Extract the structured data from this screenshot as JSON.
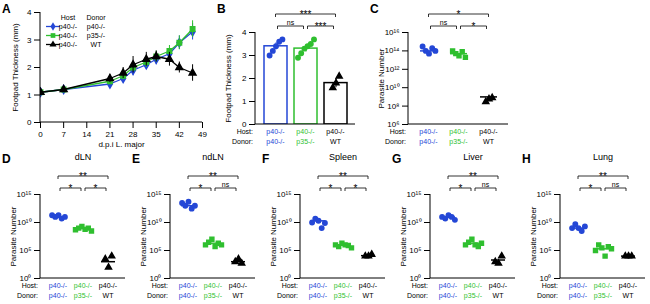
{
  "chart_data": [
    {
      "panel": "A",
      "type": "line",
      "x": [
        0,
        7,
        21,
        25,
        28,
        32,
        35,
        39,
        42,
        46
      ],
      "xlim": [
        0,
        49
      ],
      "xticks": [
        0,
        7,
        14,
        21,
        28,
        35,
        42,
        49
      ],
      "ylim": [
        0,
        4
      ],
      "yticks": [
        0,
        1,
        2,
        3,
        4
      ],
      "x_label": "d.p.i L. major",
      "y_label": "Footpad Thickness (mm)",
      "legend": "top-left",
      "legend_headers": [
        "Host",
        "Donor"
      ],
      "series": [
        {
          "host": "p40-/-",
          "donor": "p40-/-",
          "color": "#2447d6",
          "marker": "diamond",
          "values": [
            1.1,
            1.2,
            1.4,
            1.6,
            1.9,
            2.1,
            2.3,
            2.5,
            2.9,
            3.3
          ],
          "errors": [
            0.05,
            0.05,
            0.15,
            0.15,
            0.2,
            0.15,
            0.2,
            0.2,
            0.25,
            0.3
          ]
        },
        {
          "host": "p40-/-",
          "donor": "p35-/-",
          "color": "#2fbf2f",
          "marker": "square",
          "values": [
            1.1,
            1.2,
            1.5,
            1.7,
            2.0,
            2.2,
            2.4,
            2.6,
            2.9,
            3.4
          ],
          "errors": [
            0.05,
            0.05,
            0.1,
            0.15,
            0.15,
            0.2,
            0.2,
            0.2,
            0.25,
            0.3
          ]
        },
        {
          "host": "p40-/-",
          "donor": "WT",
          "color": "#000000",
          "marker": "triangle",
          "values": [
            1.1,
            1.2,
            1.6,
            1.8,
            2.1,
            2.3,
            2.4,
            2.3,
            2.0,
            1.8
          ],
          "errors": [
            0.05,
            0.05,
            0.15,
            0.2,
            0.3,
            0.25,
            0.2,
            0.25,
            0.2,
            0.3
          ]
        }
      ]
    },
    {
      "panel": "B",
      "type": "bar",
      "ylim": [
        0,
        4
      ],
      "yticks": [
        0,
        1,
        2,
        3,
        4
      ],
      "y_label": "Footpad Thickness (mm)",
      "row_labels": [
        "Host:",
        "Donor:"
      ],
      "series": [
        {
          "host": "p40-/-",
          "donor": "p40-/-",
          "color": "#2447d6",
          "marker": "circle",
          "value": 3.4,
          "error": 0.15,
          "points": [
            3.0,
            3.2,
            3.4,
            3.6,
            3.7
          ]
        },
        {
          "host": "p40-/-",
          "donor": "p35-/-",
          "color": "#2fbf2f",
          "marker": "circle",
          "value": 3.3,
          "error": 0.15,
          "points": [
            2.9,
            3.1,
            3.3,
            3.4,
            3.5,
            3.7
          ]
        },
        {
          "host": "p40-/-",
          "donor": "WT",
          "color": "#000000",
          "marker": "triangle",
          "value": 1.8,
          "error": 0.2,
          "points": [
            1.6,
            1.8,
            2.1
          ]
        }
      ],
      "significance": [
        {
          "pair": [
            0,
            1
          ],
          "label": "ns"
        },
        {
          "pair": [
            1,
            2
          ],
          "label": "***"
        },
        {
          "pair": [
            0,
            2
          ],
          "label": "***"
        }
      ]
    },
    {
      "panel": "C",
      "type": "scatter",
      "log": "y",
      "ylim": [
        1000000.0,
        1e+16
      ],
      "yticks": [
        {
          "value": 1000000.0,
          "label": "10⁶"
        },
        {
          "value": 100000000.0,
          "label": "10⁸"
        },
        {
          "value": 10000000000.0,
          "label": "10¹⁰"
        },
        {
          "value": 1000000000000.0,
          "label": "10¹²"
        },
        {
          "value": 100000000000000.0,
          "label": "10¹⁴"
        },
        {
          "value": 1e+16,
          "label": "10¹⁶"
        }
      ],
      "y_label": "Parasite Number",
      "row_labels": [
        "Host:",
        "Donor:"
      ],
      "series": [
        {
          "host": "p40-/-",
          "donor": "p40-/-",
          "color": "#2447d6",
          "marker": "circle",
          "mean": 100000000000000.0,
          "points": [
            300000000000000.0,
            100000000000000.0,
            50000000000000.0,
            200000000000000.0,
            100000000000000.0
          ]
        },
        {
          "host": "p40-/-",
          "donor": "p35-/-",
          "color": "#2fbf2f",
          "marker": "square",
          "mean": 50000000000000.0,
          "points": [
            100000000000000.0,
            50000000000000.0,
            30000000000000.0,
            80000000000000.0,
            20000000000000.0
          ]
        },
        {
          "host": "p40-/-",
          "donor": "WT",
          "color": "#000000",
          "marker": "triangle",
          "mean": 1000000000.0,
          "points": [
            300000000.0,
            600000000.0,
            800000000.0
          ]
        }
      ],
      "significance": [
        {
          "pair": [
            0,
            1
          ],
          "label": "ns"
        },
        {
          "pair": [
            1,
            2
          ],
          "label": "*"
        },
        {
          "pair": [
            0,
            2
          ],
          "label": "*"
        }
      ]
    },
    {
      "panel": "D",
      "type": "scatter",
      "log": "y",
      "title": "dLN",
      "ylim": [
        1,
        1000000000000000.0
      ],
      "yticks": [
        {
          "value": 1,
          "label": "10⁰"
        },
        {
          "value": 100000.0,
          "label": "10⁵"
        },
        {
          "value": 10000000000.0,
          "label": "10¹⁰"
        },
        {
          "value": 1000000000000000.0,
          "label": "10¹⁵"
        }
      ],
      "y_label": "Parasite Number",
      "row_labels": [
        "Host:",
        "Donor:"
      ],
      "series": [
        {
          "host": "p40-/-",
          "donor": "p40-/-",
          "color": "#2447d6",
          "marker": "circle",
          "mean": 100000000000.0,
          "points": [
            200000000000.0,
            100000000000.0,
            200000000000.0,
            50000000000.0,
            100000000000.0
          ]
        },
        {
          "host": "p40-/-",
          "donor": "p35-/-",
          "color": "#2fbf2f",
          "marker": "square",
          "mean": 800000000.0,
          "points": [
            500000000.0,
            1000000000.0,
            2000000000.0,
            600000000.0,
            1000000000.0,
            300000000.0
          ]
        },
        {
          "host": "p40-/-",
          "donor": "WT",
          "color": "#000000",
          "marker": "triangle",
          "mean": 1000.0,
          "points": [
            3000.0,
            100.0,
            10000.0
          ]
        }
      ],
      "significance": [
        {
          "pair": [
            0,
            1
          ],
          "label": "*"
        },
        {
          "pair": [
            1,
            2
          ],
          "label": "*"
        },
        {
          "pair": [
            0,
            2
          ],
          "label": "**"
        }
      ]
    },
    {
      "panel": "E",
      "type": "scatter",
      "log": "y",
      "title": "ndLN",
      "ylim": [
        1,
        1000000000000000.0
      ],
      "yticks": [
        {
          "value": 1,
          "label": "10⁰"
        },
        {
          "value": 100000.0,
          "label": "10⁵"
        },
        {
          "value": 10000000000.0,
          "label": "10¹⁰"
        },
        {
          "value": 1000000000000000.0,
          "label": "10¹⁵"
        }
      ],
      "y_label": "Parasite Number",
      "row_labels": [
        "Host:",
        "Donor:"
      ],
      "series": [
        {
          "host": "p40-/-",
          "donor": "p40-/-",
          "color": "#2447d6",
          "marker": "circle",
          "mean": 10000000000000.0,
          "points": [
            30000000000000.0,
            10000000000000.0,
            50000000000000.0,
            3000000000000.0,
            10000000000000.0
          ]
        },
        {
          "host": "p40-/-",
          "donor": "p35-/-",
          "color": "#2fbf2f",
          "marker": "square",
          "mean": 2000000.0,
          "points": [
            1000000.0,
            3000000.0,
            10000000.0,
            500000.0,
            2000000.0,
            1000000.0
          ]
        },
        {
          "host": "p40-/-",
          "donor": "WT",
          "color": "#000000",
          "marker": "triangle",
          "mean": 1000.0,
          "points": [
            1000.0,
            3000.0,
            500.0
          ]
        }
      ],
      "significance": [
        {
          "pair": [
            0,
            1
          ],
          "label": "*"
        },
        {
          "pair": [
            1,
            2
          ],
          "label": "ns"
        },
        {
          "pair": [
            0,
            2
          ],
          "label": "**"
        }
      ]
    },
    {
      "panel": "F",
      "type": "scatter",
      "log": "y",
      "title": "Spleen",
      "ylim": [
        1,
        1000000000000000.0
      ],
      "yticks": [
        {
          "value": 1,
          "label": "10⁰"
        },
        {
          "value": 100000.0,
          "label": "10⁵"
        },
        {
          "value": 10000000000.0,
          "label": "10¹⁰"
        },
        {
          "value": 1000000000000000.0,
          "label": "10¹⁵"
        }
      ],
      "y_label": "Parasite Number",
      "row_labels": [
        "Host:",
        "Donor:"
      ],
      "series": [
        {
          "host": "p40-/-",
          "donor": "p40-/-",
          "color": "#2447d6",
          "marker": "circle",
          "mean": 20000000000.0,
          "points": [
            10000000000.0,
            50000000000.0,
            20000000000.0,
            1000000000.0,
            8000000000.0
          ]
        },
        {
          "host": "p40-/-",
          "donor": "p35-/-",
          "color": "#2fbf2f",
          "marker": "square",
          "mean": 1000000.0,
          "points": [
            1000000.0,
            500000.0,
            2000000.0,
            1000000.0,
            800000.0,
            300000.0
          ]
        },
        {
          "host": "p40-/-",
          "donor": "WT",
          "color": "#000000",
          "marker": "triangle",
          "mean": 12000.0,
          "points": [
            10000.0,
            10000.0,
            20000.0
          ]
        }
      ],
      "significance": [
        {
          "pair": [
            0,
            1
          ],
          "label": "*"
        },
        {
          "pair": [
            1,
            2
          ],
          "label": "*"
        },
        {
          "pair": [
            0,
            2
          ],
          "label": "**"
        }
      ]
    },
    {
      "panel": "G",
      "type": "scatter",
      "log": "y",
      "title": "Liver",
      "ylim": [
        1,
        1000000000000000.0
      ],
      "yticks": [
        {
          "value": 1,
          "label": "10⁰"
        },
        {
          "value": 100000.0,
          "label": "10⁵"
        },
        {
          "value": 10000000000.0,
          "label": "10¹⁰"
        },
        {
          "value": 1000000000000000.0,
          "label": "10¹⁵"
        }
      ],
      "y_label": "Parasite Number",
      "row_labels": [
        "Host:",
        "Donor:"
      ],
      "series": [
        {
          "host": "p40-/-",
          "donor": "p40-/-",
          "color": "#2447d6",
          "marker": "circle",
          "mean": 100000000000.0,
          "points": [
            100000000000.0,
            50000000000.0,
            200000000000.0,
            100000000000.0,
            30000000000.0
          ]
        },
        {
          "host": "p40-/-",
          "donor": "p35-/-",
          "color": "#2fbf2f",
          "marker": "square",
          "mean": 2000000.0,
          "points": [
            1000000.0,
            3000000.0,
            10000000.0,
            1000000.0,
            500000.0,
            2000000.0
          ]
        },
        {
          "host": "p40-/-",
          "donor": "WT",
          "color": "#000000",
          "marker": "triangle",
          "mean": 2000.0,
          "points": [
            1000.0,
            500.0,
            10000.0
          ]
        }
      ],
      "significance": [
        {
          "pair": [
            0,
            1
          ],
          "label": "*"
        },
        {
          "pair": [
            1,
            2
          ],
          "label": "ns"
        },
        {
          "pair": [
            0,
            2
          ],
          "label": "**"
        }
      ]
    },
    {
      "panel": "H",
      "type": "scatter",
      "log": "y",
      "title": "Lung",
      "ylim": [
        1,
        1000000000000000.0
      ],
      "yticks": [
        {
          "value": 1,
          "label": "10⁰"
        },
        {
          "value": 100000.0,
          "label": "10⁵"
        },
        {
          "value": 10000000000.0,
          "label": "10¹⁰"
        },
        {
          "value": 1000000000000000.0,
          "label": "10¹⁵"
        }
      ],
      "y_label": "Parasite Number",
      "row_labels": [
        "Host:",
        "Donor:"
      ],
      "series": [
        {
          "host": "p40-/-",
          "donor": "p40-/-",
          "color": "#2447d6",
          "marker": "circle",
          "mean": 1000000000.0,
          "points": [
            1000000000.0,
            5000000000.0,
            1000000000.0,
            300000000.0,
            2000000000.0
          ]
        },
        {
          "host": "p40-/-",
          "donor": "p35-/-",
          "color": "#2fbf2f",
          "marker": "square",
          "mean": 200000.0,
          "points": [
            100000.0,
            1000000.0,
            300000.0,
            10000.0,
            500000.0,
            200000.0
          ]
        },
        {
          "host": "p40-/-",
          "donor": "WT",
          "color": "#000000",
          "marker": "triangle",
          "mean": 10000.0,
          "points": [
            10000.0,
            10000.0,
            10000.0
          ]
        }
      ],
      "significance": [
        {
          "pair": [
            0,
            1
          ],
          "label": "*"
        },
        {
          "pair": [
            1,
            2
          ],
          "label": "ns"
        },
        {
          "pair": [
            0,
            2
          ],
          "label": "**"
        }
      ]
    }
  ]
}
